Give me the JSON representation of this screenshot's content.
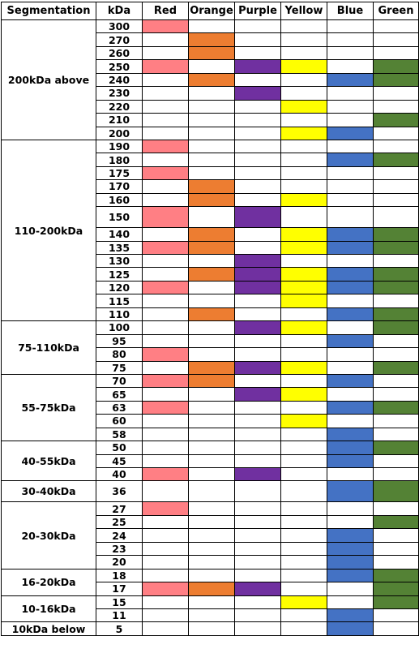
{
  "table": {
    "headers": {
      "segmentation": "Segmentation",
      "kda": "kDa",
      "colors": [
        "Red",
        "Orange",
        "Purple",
        "Yellow",
        "Blue",
        "Green"
      ]
    },
    "color_hex": {
      "Red": "#ff7f84",
      "Orange": "#ed7d31",
      "Purple": "#7030a0",
      "Yellow": "#ffff00",
      "Blue": "#4472c4",
      "Green": "#548235"
    },
    "groups": [
      {
        "label": "200kDa above",
        "rows": [
          {
            "kda": "300",
            "on": [
              "Red"
            ]
          },
          {
            "kda": "270",
            "on": [
              "Orange"
            ]
          },
          {
            "kda": "260",
            "on": [
              "Orange"
            ]
          },
          {
            "kda": "250",
            "on": [
              "Red",
              "Purple",
              "Yellow",
              "Green"
            ]
          },
          {
            "kda": "240",
            "on": [
              "Orange",
              "Blue",
              "Green"
            ]
          },
          {
            "kda": "230",
            "on": [
              "Purple"
            ]
          },
          {
            "kda": "220",
            "on": [
              "Yellow"
            ]
          },
          {
            "kda": "210",
            "on": [
              "Green"
            ]
          },
          {
            "kda": "200",
            "on": [
              "Yellow",
              "Blue"
            ]
          }
        ]
      },
      {
        "label": "110-200kDa",
        "rows": [
          {
            "kda": "190",
            "on": [
              "Red"
            ]
          },
          {
            "kda": "180",
            "on": [
              "Blue",
              "Green"
            ]
          },
          {
            "kda": "175",
            "on": [
              "Red"
            ]
          },
          {
            "kda": "170",
            "on": [
              "Orange"
            ]
          },
          {
            "kda": "160",
            "on": [
              "Orange",
              "Yellow"
            ]
          },
          {
            "kda": "150",
            "on": [
              "Red",
              "Purple"
            ],
            "tall": true
          },
          {
            "kda": "140",
            "on": [
              "Orange",
              "Yellow",
              "Blue",
              "Green"
            ]
          },
          {
            "kda": "135",
            "on": [
              "Red",
              "Orange",
              "Yellow",
              "Blue",
              "Green"
            ]
          },
          {
            "kda": "130",
            "on": [
              "Purple"
            ]
          },
          {
            "kda": "125",
            "on": [
              "Orange",
              "Purple",
              "Yellow",
              "Blue",
              "Green"
            ]
          },
          {
            "kda": "120",
            "on": [
              "Red",
              "Purple",
              "Yellow",
              "Blue",
              "Green"
            ]
          },
          {
            "kda": "115",
            "on": [
              "Yellow"
            ]
          },
          {
            "kda": "110",
            "on": [
              "Orange",
              "Blue",
              "Green"
            ]
          }
        ]
      },
      {
        "label": "75-110kDa",
        "rows": [
          {
            "kda": "100",
            "on": [
              "Purple",
              "Yellow",
              "Green"
            ]
          },
          {
            "kda": "95",
            "on": [
              "Blue"
            ]
          },
          {
            "kda": "80",
            "on": [
              "Red"
            ]
          },
          {
            "kda": "75",
            "on": [
              "Orange",
              "Purple",
              "Yellow",
              "Green"
            ]
          }
        ]
      },
      {
        "label": "55-75kDa",
        "rows": [
          {
            "kda": "70",
            "on": [
              "Red",
              "Orange",
              "Blue"
            ]
          },
          {
            "kda": "65",
            "on": [
              "Purple",
              "Yellow"
            ]
          },
          {
            "kda": "63",
            "on": [
              "Red",
              "Blue",
              "Green"
            ]
          },
          {
            "kda": "60",
            "on": [
              "Yellow"
            ]
          },
          {
            "kda": "58",
            "on": [
              "Blue"
            ]
          }
        ]
      },
      {
        "label": "40-55kDa",
        "rows": [
          {
            "kda": "50",
            "on": [
              "Blue",
              "Green"
            ]
          },
          {
            "kda": "45",
            "on": [
              "Blue"
            ]
          },
          {
            "kda": "40",
            "on": [
              "Red",
              "Purple"
            ]
          }
        ]
      },
      {
        "label": "30-40kDa",
        "rows": [
          {
            "kda": "36",
            "on": [
              "Blue",
              "Green"
            ],
            "tall": true
          }
        ]
      },
      {
        "label": "20-30kDa",
        "rows": [
          {
            "kda": "27",
            "on": [
              "Red"
            ]
          },
          {
            "kda": "25",
            "on": [
              "Green"
            ]
          },
          {
            "kda": "24",
            "on": [
              "Blue"
            ]
          },
          {
            "kda": "23",
            "on": [
              "Blue"
            ]
          },
          {
            "kda": "20",
            "on": [
              "Blue"
            ]
          }
        ]
      },
      {
        "label": "16-20kDa",
        "rows": [
          {
            "kda": "18",
            "on": [
              "Blue",
              "Green"
            ]
          },
          {
            "kda": "17",
            "on": [
              "Red",
              "Orange",
              "Purple",
              "Green"
            ]
          }
        ]
      },
      {
        "label": "10-16kDa",
        "rows": [
          {
            "kda": "15",
            "on": [
              "Yellow",
              "Green"
            ]
          },
          {
            "kda": "11",
            "on": [
              "Blue"
            ]
          }
        ]
      },
      {
        "label": "10kDa below",
        "rows": [
          {
            "kda": "5",
            "on": [
              "Blue"
            ]
          }
        ]
      }
    ]
  }
}
